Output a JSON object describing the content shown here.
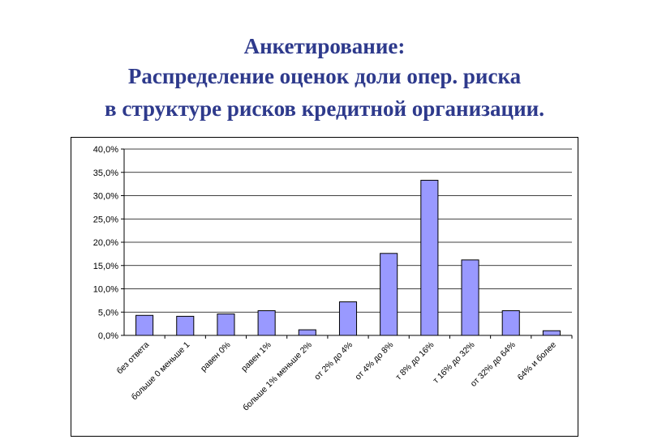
{
  "title": {
    "line1": "Анкетирование:",
    "line2": "Распределение оценок доли опер. риска",
    "line3": "в структуре рисков кредитной организации."
  },
  "colors": {
    "title": "#2e3a8c",
    "bar_fill": "#9999ff",
    "bar_stroke": "#000000",
    "grid": "#000000"
  },
  "chart_data": {
    "type": "bar",
    "categories": [
      "без ответа",
      "больше 0 меньше 1",
      "равен 0%",
      "равен 1%",
      "больше 1% меньше 2%",
      "от 2% до 4%",
      "от 4% до 8%",
      "т 8% до 16%",
      "т 16% до 32%",
      "от 32% до 64%",
      "64% и более"
    ],
    "values": [
      4.3,
      4.1,
      4.6,
      5.3,
      1.2,
      7.2,
      17.6,
      33.3,
      16.2,
      5.3,
      1.0
    ],
    "ylim": [
      0,
      40
    ],
    "yticks": [
      "0,0%",
      "5,0%",
      "10,0%",
      "15,0%",
      "20,0%",
      "25,0%",
      "30,0%",
      "35,0%",
      "40,0%"
    ],
    "grid": true,
    "legend": "none",
    "title": "",
    "xlabel": "",
    "ylabel": ""
  }
}
